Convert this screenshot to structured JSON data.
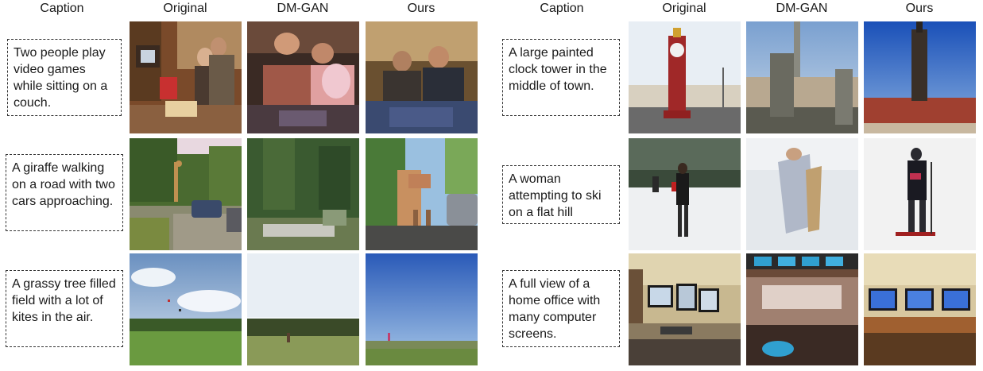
{
  "headers": {
    "caption": "Caption",
    "original": "Original",
    "dmgan": "DM-GAN",
    "ours": "Ours"
  },
  "rows": [
    {
      "caption": "Two people play video games while sitting on a couch.",
      "original_image": "living-room-people-tv-image",
      "dmgan_image": "dmgan-people-couch-image",
      "ours_image": "ours-people-couch-image"
    },
    {
      "caption": "A giraffe walking on a road with two cars approaching.",
      "original_image": "giraffe-road-cars-image",
      "dmgan_image": "dmgan-trees-road-image",
      "ours_image": "ours-giraffe-car-image"
    },
    {
      "caption": "A grassy tree filled field with a lot of kites in the air.",
      "original_image": "field-kites-sky-image",
      "dmgan_image": "dmgan-field-sky-image",
      "ours_image": "ours-field-blue-sky-image"
    },
    {
      "caption": "A large painted clock tower in the middle of town.",
      "original_image": "red-clock-tower-image",
      "dmgan_image": "dmgan-tower-buildings-image",
      "ours_image": "ours-tower-building-image"
    },
    {
      "caption": "A woman attempting to ski on a flat hill",
      "original_image": "woman-skiing-snow-image",
      "dmgan_image": "dmgan-figure-snow-image",
      "ours_image": "ours-skier-snow-image"
    },
    {
      "caption": "A full view of a home office with many computer screens.",
      "original_image": "home-office-monitors-image",
      "dmgan_image": "dmgan-office-screens-image",
      "ours_image": "ours-monitors-desk-image"
    }
  ]
}
